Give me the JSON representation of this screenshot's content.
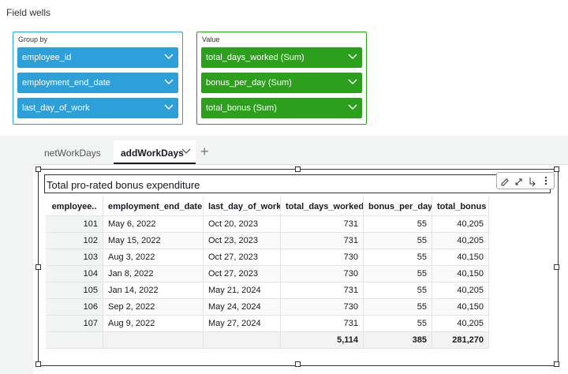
{
  "field_wells": {
    "title": "Field wells",
    "group_by": {
      "label": "Group by",
      "fields": [
        "employee_id",
        "employment_end_date",
        "last_day_of_work"
      ]
    },
    "value": {
      "label": "Value",
      "fields": [
        "total_days_worked (Sum)",
        "bonus_per_day (Sum)",
        "total_bonus (Sum)"
      ]
    }
  },
  "tabs": [
    "netWorkDays",
    "addWorkDays"
  ],
  "visual": {
    "title": "Total pro-rated bonus expenditure",
    "table": {
      "columns": [
        "employee..",
        "employment_end_date",
        "last_day_of_work",
        "total_days_worked",
        "bonus_per_day",
        "total_bonus"
      ],
      "rows": [
        [
          "101",
          "May 6, 2022",
          "Oct 20, 2023",
          "731",
          "55",
          "40,205"
        ],
        [
          "102",
          "May 15, 2022",
          "Oct 23, 2023",
          "731",
          "55",
          "40,205"
        ],
        [
          "103",
          "Aug 3, 2022",
          "Oct 27, 2023",
          "730",
          "55",
          "40,150"
        ],
        [
          "104",
          "Jan 8, 2022",
          "Oct 27, 2023",
          "730",
          "55",
          "40,150"
        ],
        [
          "105",
          "Jan 14, 2022",
          "May 21, 2024",
          "731",
          "55",
          "40,205"
        ],
        [
          "106",
          "Sep 2, 2022",
          "May 24, 2024",
          "730",
          "55",
          "40,150"
        ],
        [
          "107",
          "Aug 9, 2022",
          "May 27, 2024",
          "731",
          "55",
          "40,205"
        ]
      ],
      "totals": [
        "5,114",
        "385",
        "281,270"
      ]
    }
  }
}
